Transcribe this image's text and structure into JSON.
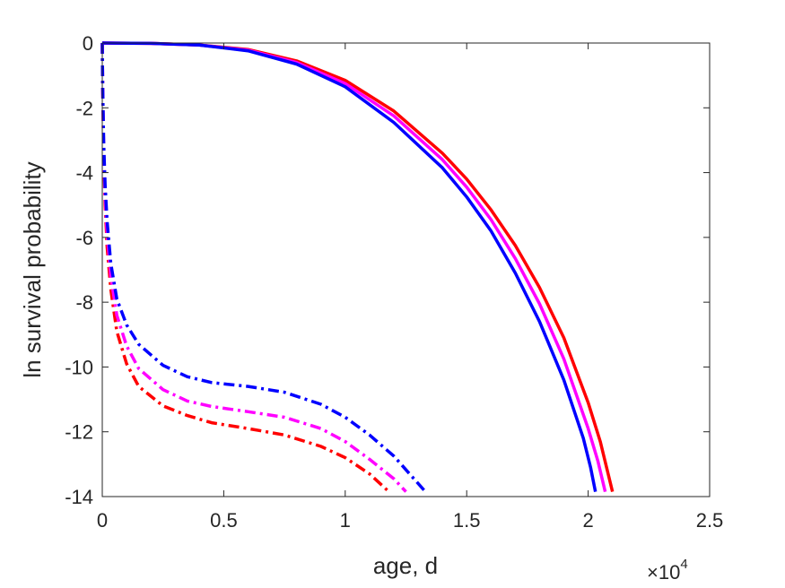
{
  "chart_data": {
    "type": "line",
    "title": "",
    "xlabel": "age, d",
    "ylabel": "ln survival probability",
    "xlim": [
      0,
      25000
    ],
    "ylim": [
      -14,
      0
    ],
    "x_multiplier_label": {
      "base": "×10",
      "exponent": "4"
    },
    "x_ticks": [
      0,
      5000,
      10000,
      15000,
      20000,
      25000
    ],
    "x_tick_labels": [
      "0",
      "0.5",
      "1",
      "1.5",
      "2",
      "2.5"
    ],
    "y_ticks": [
      0,
      -2,
      -4,
      -6,
      -8,
      -10,
      -12,
      -14
    ],
    "y_tick_labels": [
      "0",
      "-2",
      "-4",
      "-6",
      "-8",
      "-10",
      "-12",
      "-14"
    ],
    "grid": false,
    "legend": false,
    "colors": {
      "red": "#ff0000",
      "magenta": "#ff00ff",
      "blue": "#0000ff",
      "axis": "#262626"
    },
    "series": [
      {
        "color": "#ff0000",
        "style": "solid",
        "points": [
          [
            0,
            0
          ],
          [
            2000,
            -0.01
          ],
          [
            4000,
            -0.06
          ],
          [
            6000,
            -0.2
          ],
          [
            8000,
            -0.55
          ],
          [
            10000,
            -1.15
          ],
          [
            12000,
            -2.1
          ],
          [
            14000,
            -3.4
          ],
          [
            15000,
            -4.2
          ],
          [
            16000,
            -5.15
          ],
          [
            17000,
            -6.25
          ],
          [
            18000,
            -7.55
          ],
          [
            19000,
            -9.1
          ],
          [
            20000,
            -11.1
          ],
          [
            20500,
            -12.3
          ],
          [
            21000,
            -13.85
          ]
        ]
      },
      {
        "color": "#ff00ff",
        "style": "solid",
        "points": [
          [
            0,
            0
          ],
          [
            2000,
            -0.01
          ],
          [
            4000,
            -0.06
          ],
          [
            6000,
            -0.22
          ],
          [
            8000,
            -0.6
          ],
          [
            10000,
            -1.25
          ],
          [
            12000,
            -2.25
          ],
          [
            14000,
            -3.6
          ],
          [
            15000,
            -4.45
          ],
          [
            16000,
            -5.45
          ],
          [
            17000,
            -6.65
          ],
          [
            18000,
            -8.05
          ],
          [
            19000,
            -9.75
          ],
          [
            20000,
            -11.9
          ],
          [
            20400,
            -12.9
          ],
          [
            20700,
            -13.85
          ]
        ]
      },
      {
        "color": "#0000ff",
        "style": "solid",
        "points": [
          [
            0,
            0
          ],
          [
            2000,
            -0.01
          ],
          [
            4000,
            -0.06
          ],
          [
            6000,
            -0.24
          ],
          [
            8000,
            -0.65
          ],
          [
            10000,
            -1.35
          ],
          [
            12000,
            -2.45
          ],
          [
            14000,
            -3.85
          ],
          [
            15000,
            -4.75
          ],
          [
            16000,
            -5.8
          ],
          [
            17000,
            -7.1
          ],
          [
            18000,
            -8.6
          ],
          [
            19000,
            -10.4
          ],
          [
            19800,
            -12.2
          ],
          [
            20100,
            -13.1
          ],
          [
            20300,
            -13.85
          ]
        ]
      },
      {
        "color": "#ff0000",
        "style": "dashdot",
        "points": [
          [
            0,
            0
          ],
          [
            20,
            -1.5
          ],
          [
            60,
            -3.5
          ],
          [
            120,
            -5
          ],
          [
            200,
            -6.3
          ],
          [
            350,
            -7.6
          ],
          [
            600,
            -8.9
          ],
          [
            1000,
            -9.9
          ],
          [
            1500,
            -10.6
          ],
          [
            2500,
            -11.2
          ],
          [
            3500,
            -11.5
          ],
          [
            4500,
            -11.72
          ],
          [
            6000,
            -11.9
          ],
          [
            7500,
            -12.1
          ],
          [
            9000,
            -12.45
          ],
          [
            10000,
            -12.8
          ],
          [
            11000,
            -13.3
          ],
          [
            11800,
            -13.85
          ]
        ]
      },
      {
        "color": "#ff00ff",
        "style": "dashdot",
        "points": [
          [
            0,
            0
          ],
          [
            20,
            -1.5
          ],
          [
            60,
            -3.3
          ],
          [
            120,
            -4.7
          ],
          [
            200,
            -5.9
          ],
          [
            350,
            -7.2
          ],
          [
            600,
            -8.4
          ],
          [
            1000,
            -9.35
          ],
          [
            1500,
            -10.05
          ],
          [
            2500,
            -10.7
          ],
          [
            3500,
            -11.05
          ],
          [
            4500,
            -11.22
          ],
          [
            6000,
            -11.38
          ],
          [
            7500,
            -11.55
          ],
          [
            9000,
            -11.9
          ],
          [
            10000,
            -12.3
          ],
          [
            11000,
            -12.85
          ],
          [
            12000,
            -13.45
          ],
          [
            12500,
            -13.85
          ]
        ]
      },
      {
        "color": "#0000ff",
        "style": "dashdot",
        "points": [
          [
            0,
            0
          ],
          [
            20,
            -1.4
          ],
          [
            60,
            -3.1
          ],
          [
            120,
            -4.4
          ],
          [
            200,
            -5.5
          ],
          [
            350,
            -6.8
          ],
          [
            600,
            -7.9
          ],
          [
            1000,
            -8.7
          ],
          [
            1500,
            -9.3
          ],
          [
            2500,
            -9.95
          ],
          [
            3500,
            -10.3
          ],
          [
            4500,
            -10.48
          ],
          [
            6000,
            -10.6
          ],
          [
            7500,
            -10.78
          ],
          [
            9000,
            -11.15
          ],
          [
            10000,
            -11.55
          ],
          [
            11000,
            -12.1
          ],
          [
            12000,
            -12.75
          ],
          [
            13300,
            -13.85
          ]
        ]
      }
    ]
  }
}
